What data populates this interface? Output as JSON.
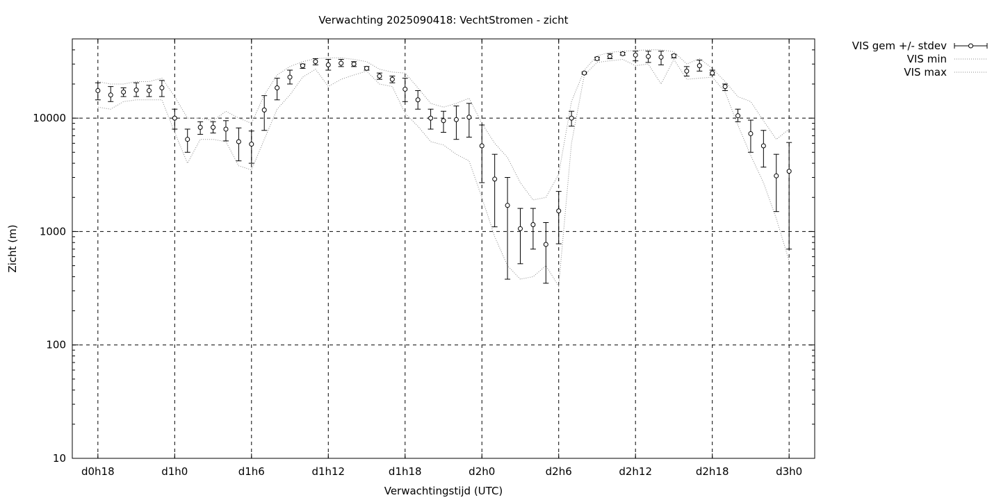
{
  "chart_data": {
    "type": "scatter",
    "title": "Verwachting 2025090418: VechtStromen - zicht",
    "xlabel": "Verwachtingstijd (UTC)",
    "ylabel": "Zicht (m)",
    "y_scale": "log",
    "ylim": [
      10,
      50000
    ],
    "xlim": [
      16,
      74
    ],
    "x_unit": "hours",
    "grid": true,
    "legend_position": "top-right outside",
    "x_ticks": [
      {
        "x": 18,
        "label": "d0h18"
      },
      {
        "x": 24,
        "label": "d1h0"
      },
      {
        "x": 30,
        "label": "d1h6"
      },
      {
        "x": 36,
        "label": "d1h12"
      },
      {
        "x": 42,
        "label": "d1h18"
      },
      {
        "x": 48,
        "label": "d2h0"
      },
      {
        "x": 54,
        "label": "d2h6"
      },
      {
        "x": 60,
        "label": "d2h12"
      },
      {
        "x": 66,
        "label": "d2h18"
      },
      {
        "x": 72,
        "label": "d3h0"
      }
    ],
    "y_ticks": [
      {
        "y": 10,
        "label": "10"
      },
      {
        "y": 100,
        "label": "100"
      },
      {
        "y": 1000,
        "label": "1000"
      },
      {
        "y": 10000,
        "label": "10000"
      }
    ],
    "x": [
      18,
      19,
      20,
      21,
      22,
      23,
      24,
      25,
      26,
      27,
      28,
      29,
      30,
      31,
      32,
      33,
      34,
      35,
      36,
      37,
      38,
      39,
      40,
      41,
      42,
      43,
      44,
      45,
      46,
      47,
      48,
      49,
      50,
      51,
      52,
      53,
      54,
      55,
      56,
      57,
      58,
      59,
      60,
      61,
      62,
      63,
      64,
      65,
      66,
      67,
      68,
      69,
      70,
      71,
      72
    ],
    "series": [
      {
        "name": "VIS gem +/- stdev",
        "style": "points-errorbars",
        "mean": [
          17500,
          16000,
          17000,
          17700,
          17500,
          18500,
          10000,
          6500,
          8300,
          8300,
          8000,
          6200,
          5900,
          11800,
          18500,
          23000,
          29000,
          31500,
          29500,
          30500,
          30000,
          27500,
          23500,
          22000,
          18000,
          14500,
          10000,
          9500,
          9700,
          10200,
          5700,
          2900,
          1700,
          1060,
          1150,
          770,
          1520,
          10000,
          25000,
          33500,
          35000,
          37000,
          36000,
          35000,
          34500,
          35500,
          26000,
          29000,
          25000,
          19000,
          10500,
          7300,
          5700,
          3100,
          3400
        ],
        "low": [
          14500,
          14000,
          15500,
          15500,
          15500,
          15500,
          8000,
          5000,
          7200,
          7400,
          6300,
          4200,
          4000,
          7800,
          14500,
          20000,
          27500,
          29500,
          26500,
          28500,
          28500,
          26500,
          22000,
          20500,
          14000,
          12000,
          8000,
          7500,
          6500,
          6800,
          2700,
          1100,
          380,
          520,
          700,
          350,
          780,
          8500,
          24500,
          32500,
          33500,
          36000,
          32000,
          31000,
          29500,
          34000,
          23500,
          26000,
          24000,
          17500,
          9300,
          5000,
          3700,
          1500,
          700
        ],
        "high": [
          20500,
          19000,
          18500,
          20500,
          19500,
          21500,
          12000,
          8000,
          9300,
          9300,
          9500,
          8200,
          7700,
          15800,
          22500,
          26500,
          30000,
          33500,
          33000,
          33000,
          31500,
          28500,
          25000,
          23500,
          22500,
          17500,
          12000,
          11500,
          12800,
          13500,
          8700,
          4800,
          3000,
          1600,
          1600,
          1200,
          2260,
          11500,
          25500,
          34500,
          37000,
          38000,
          39000,
          39000,
          39000,
          36500,
          28500,
          32500,
          26500,
          20000,
          12000,
          9600,
          7800,
          4800,
          6100
        ]
      },
      {
        "name": "VIS min",
        "style": "dotted",
        "values": [
          12500,
          12000,
          14000,
          14500,
          14500,
          14500,
          7500,
          4000,
          6500,
          6500,
          6200,
          3800,
          3500,
          6500,
          12000,
          16000,
          23000,
          27000,
          19000,
          22000,
          24000,
          26000,
          20000,
          19000,
          11000,
          8500,
          6200,
          5800,
          4800,
          4200,
          2000,
          900,
          500,
          380,
          400,
          500,
          330,
          6000,
          24000,
          31000,
          32000,
          33000,
          29000,
          30000,
          20000,
          33000,
          22000,
          22500,
          23000,
          17000,
          8700,
          4700,
          2700,
          1300,
          550
        ]
      },
      {
        "name": "VIS max",
        "style": "dotted",
        "values": [
          21000,
          20000,
          20000,
          21000,
          21000,
          22500,
          15500,
          10000,
          10000,
          9500,
          11500,
          10000,
          9000,
          16000,
          24000,
          28500,
          31500,
          33500,
          34000,
          34000,
          33000,
          31500,
          27000,
          25500,
          25000,
          18500,
          13500,
          12500,
          13500,
          15000,
          9000,
          6000,
          4500,
          2700,
          1900,
          2000,
          3200,
          14000,
          26500,
          35500,
          38000,
          39000,
          39500,
          40000,
          40000,
          38500,
          30000,
          33500,
          27500,
          21000,
          15500,
          14000,
          9500,
          6500,
          8000
        ]
      }
    ]
  }
}
